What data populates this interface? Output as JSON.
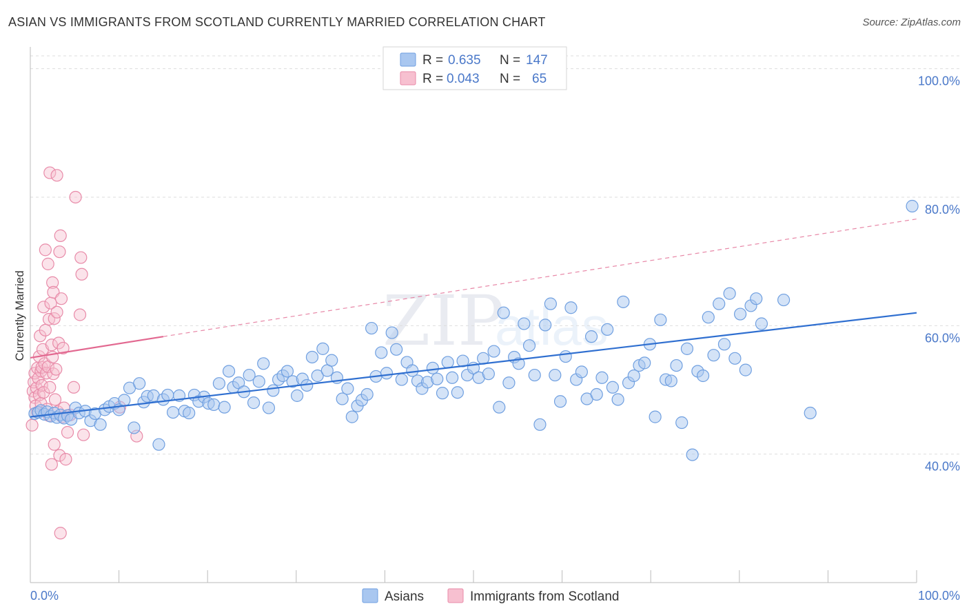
{
  "title": "ASIAN VS IMMIGRANTS FROM SCOTLAND CURRENTLY MARRIED CORRELATION CHART",
  "source": "Source: ZipAtlas.com",
  "watermark": {
    "zip": "ZIP",
    "atlas": "atlas"
  },
  "colors": {
    "asian_fill": "#a9c7f0",
    "asian_stroke": "#6f9fe0",
    "asian_line": "#2f6fd0",
    "scot_fill": "#f7c0d0",
    "scot_stroke": "#e88aa8",
    "scot_line": "#e26890",
    "accent_text": "#4a78c9",
    "grid": "#dddddd"
  },
  "legend": {
    "rows": [
      {
        "r_label": "R = ",
        "r_value": "0.635",
        "n_label": "N = ",
        "n_value": "147"
      },
      {
        "r_label": "R = ",
        "r_value": "0.043",
        "n_label": "N = ",
        "n_value": "65"
      }
    ]
  },
  "chart_data": {
    "type": "scatter",
    "title": "ASIAN VS IMMIGRANTS FROM SCOTLAND CURRENTLY MARRIED CORRELATION CHART",
    "xlabel": "",
    "ylabel": "Currently Married",
    "xlim": [
      0,
      100
    ],
    "ylim": [
      20,
      102
    ],
    "x_tick_labels": [
      "0.0%",
      "100.0%"
    ],
    "y_ticks": [
      40,
      60,
      80,
      100
    ],
    "y_tick_labels": [
      "40.0%",
      "60.0%",
      "80.0%",
      "100.0%"
    ],
    "grid": true,
    "legend_position": "top-center",
    "series": [
      {
        "name": "Asians",
        "r": 0.635,
        "n": 147,
        "trend": {
          "x": [
            0,
            100
          ],
          "y": [
            45.8,
            62.0
          ],
          "style": "solid"
        },
        "points": [
          [
            0.5,
            46.3
          ],
          [
            0.9,
            46.5
          ],
          [
            1.2,
            46.8
          ],
          [
            1.6,
            46.2
          ],
          [
            1.9,
            46.6
          ],
          [
            2.3,
            45.9
          ],
          [
            2.7,
            46.4
          ],
          [
            3.0,
            45.7
          ],
          [
            3.4,
            46.1
          ],
          [
            3.8,
            45.6
          ],
          [
            4.2,
            46.0
          ],
          [
            4.6,
            45.4
          ],
          [
            5.1,
            47.2
          ],
          [
            5.5,
            46.4
          ],
          [
            6.2,
            46.7
          ],
          [
            6.8,
            45.2
          ],
          [
            7.3,
            46.3
          ],
          [
            7.9,
            44.6
          ],
          [
            8.4,
            46.9
          ],
          [
            8.9,
            47.4
          ],
          [
            9.5,
            47.9
          ],
          [
            10.0,
            46.9
          ],
          [
            10.6,
            48.4
          ],
          [
            11.2,
            50.3
          ],
          [
            11.7,
            44.1
          ],
          [
            12.3,
            51.0
          ],
          [
            12.8,
            48.1
          ],
          [
            13.2,
            49.0
          ],
          [
            13.9,
            49.1
          ],
          [
            14.5,
            41.5
          ],
          [
            15.0,
            48.5
          ],
          [
            15.5,
            49.2
          ],
          [
            16.1,
            46.5
          ],
          [
            16.8,
            49.1
          ],
          [
            17.4,
            46.7
          ],
          [
            17.9,
            46.4
          ],
          [
            18.5,
            49.2
          ],
          [
            19.0,
            48.2
          ],
          [
            19.6,
            48.9
          ],
          [
            20.1,
            47.9
          ],
          [
            20.7,
            47.7
          ],
          [
            21.3,
            51.0
          ],
          [
            21.9,
            47.3
          ],
          [
            22.4,
            52.9
          ],
          [
            22.9,
            50.4
          ],
          [
            23.5,
            51.1
          ],
          [
            24.1,
            49.7
          ],
          [
            24.7,
            52.3
          ],
          [
            25.2,
            48.0
          ],
          [
            25.8,
            51.3
          ],
          [
            26.3,
            54.1
          ],
          [
            26.9,
            47.2
          ],
          [
            27.4,
            49.9
          ],
          [
            28.0,
            51.6
          ],
          [
            28.5,
            52.2
          ],
          [
            29.0,
            52.9
          ],
          [
            29.6,
            51.3
          ],
          [
            30.1,
            49.1
          ],
          [
            30.7,
            51.7
          ],
          [
            31.2,
            50.7
          ],
          [
            31.8,
            55.1
          ],
          [
            32.4,
            52.2
          ],
          [
            33.0,
            56.4
          ],
          [
            33.5,
            53.0
          ],
          [
            34.0,
            54.6
          ],
          [
            34.6,
            51.9
          ],
          [
            35.2,
            48.6
          ],
          [
            35.8,
            50.2
          ],
          [
            36.3,
            45.8
          ],
          [
            36.9,
            47.5
          ],
          [
            37.4,
            48.4
          ],
          [
            38.0,
            49.3
          ],
          [
            38.5,
            59.6
          ],
          [
            39.0,
            52.1
          ],
          [
            39.6,
            55.8
          ],
          [
            40.2,
            52.6
          ],
          [
            40.8,
            58.9
          ],
          [
            41.3,
            56.3
          ],
          [
            41.9,
            51.6
          ],
          [
            42.5,
            54.3
          ],
          [
            43.1,
            53.0
          ],
          [
            43.7,
            51.4
          ],
          [
            44.2,
            50.2
          ],
          [
            44.8,
            51.2
          ],
          [
            45.4,
            53.4
          ],
          [
            45.9,
            51.7
          ],
          [
            46.5,
            49.5
          ],
          [
            47.1,
            54.3
          ],
          [
            47.6,
            51.9
          ],
          [
            48.2,
            49.6
          ],
          [
            48.8,
            54.5
          ],
          [
            49.3,
            52.3
          ],
          [
            50.0,
            53.4
          ],
          [
            50.6,
            51.9
          ],
          [
            51.1,
            54.9
          ],
          [
            51.7,
            52.5
          ],
          [
            52.3,
            56.0
          ],
          [
            52.9,
            47.3
          ],
          [
            53.4,
            62.0
          ],
          [
            54.0,
            51.1
          ],
          [
            54.6,
            55.1
          ],
          [
            55.1,
            54.1
          ],
          [
            55.7,
            60.3
          ],
          [
            56.3,
            56.9
          ],
          [
            56.9,
            52.3
          ],
          [
            57.5,
            44.6
          ],
          [
            58.1,
            60.1
          ],
          [
            58.7,
            63.4
          ],
          [
            59.2,
            52.3
          ],
          [
            59.8,
            48.2
          ],
          [
            60.4,
            55.2
          ],
          [
            61.0,
            62.8
          ],
          [
            61.6,
            51.6
          ],
          [
            62.2,
            52.8
          ],
          [
            62.8,
            48.6
          ],
          [
            63.3,
            58.3
          ],
          [
            63.9,
            49.3
          ],
          [
            64.5,
            51.9
          ],
          [
            65.1,
            59.4
          ],
          [
            65.7,
            50.4
          ],
          [
            66.3,
            48.5
          ],
          [
            66.9,
            63.7
          ],
          [
            67.5,
            51.1
          ],
          [
            68.1,
            52.2
          ],
          [
            68.7,
            53.8
          ],
          [
            69.3,
            54.2
          ],
          [
            69.9,
            57.1
          ],
          [
            70.5,
            45.8
          ],
          [
            71.1,
            60.9
          ],
          [
            71.7,
            51.6
          ],
          [
            72.3,
            51.4
          ],
          [
            72.9,
            53.8
          ],
          [
            73.5,
            44.9
          ],
          [
            74.1,
            56.4
          ],
          [
            74.7,
            39.9
          ],
          [
            75.3,
            52.9
          ],
          [
            75.9,
            52.2
          ],
          [
            76.5,
            61.3
          ],
          [
            77.1,
            55.4
          ],
          [
            77.7,
            63.4
          ],
          [
            78.3,
            57.1
          ],
          [
            78.9,
            65.0
          ],
          [
            79.5,
            54.9
          ],
          [
            80.1,
            61.8
          ],
          [
            80.7,
            53.1
          ],
          [
            81.3,
            63.1
          ],
          [
            81.9,
            64.2
          ],
          [
            82.5,
            60.3
          ],
          [
            85.0,
            64.0
          ],
          [
            88.0,
            46.4
          ],
          [
            99.5,
            78.6
          ]
        ]
      },
      {
        "name": "Immigrants from Scotland",
        "r": 0.043,
        "n": 65,
        "trend": {
          "x": [
            0,
            15
          ],
          "y": [
            55.0,
            58.3
          ],
          "style": "solid",
          "extended": {
            "x": [
              15,
              100
            ],
            "y": [
              58.3,
              76.6
            ],
            "style": "dashed"
          }
        },
        "points": [
          [
            0.2,
            44.5
          ],
          [
            0.3,
            49.8
          ],
          [
            0.4,
            51.2
          ],
          [
            0.5,
            48.8
          ],
          [
            0.5,
            52.6
          ],
          [
            0.6,
            47.5
          ],
          [
            0.7,
            50.3
          ],
          [
            0.8,
            53.4
          ],
          [
            0.8,
            46.5
          ],
          [
            0.9,
            51.8
          ],
          [
            1.0,
            55.2
          ],
          [
            1.0,
            49.2
          ],
          [
            1.1,
            58.4
          ],
          [
            1.2,
            52.9
          ],
          [
            1.2,
            47.9
          ],
          [
            1.3,
            50.7
          ],
          [
            1.3,
            53.5
          ],
          [
            1.4,
            56.3
          ],
          [
            1.5,
            62.9
          ],
          [
            1.5,
            49.6
          ],
          [
            1.6,
            54.1
          ],
          [
            1.7,
            59.3
          ],
          [
            1.7,
            71.8
          ],
          [
            1.8,
            52.6
          ],
          [
            1.9,
            47.0
          ],
          [
            2.0,
            69.6
          ],
          [
            2.0,
            53.6
          ],
          [
            2.1,
            61.0
          ],
          [
            2.1,
            46.0
          ],
          [
            2.2,
            83.8
          ],
          [
            2.2,
            50.4
          ],
          [
            2.3,
            63.5
          ],
          [
            2.4,
            57.0
          ],
          [
            2.4,
            38.4
          ],
          [
            2.5,
            66.7
          ],
          [
            2.5,
            55.1
          ],
          [
            2.6,
            65.2
          ],
          [
            2.6,
            52.5
          ],
          [
            2.7,
            41.5
          ],
          [
            2.7,
            61.1
          ],
          [
            2.8,
            48.5
          ],
          [
            2.9,
            53.2
          ],
          [
            3.0,
            62.1
          ],
          [
            3.0,
            83.4
          ],
          [
            3.1,
            46.6
          ],
          [
            3.2,
            57.3
          ],
          [
            3.3,
            71.5
          ],
          [
            3.3,
            39.8
          ],
          [
            3.4,
            27.7
          ],
          [
            3.4,
            74.0
          ],
          [
            3.5,
            64.2
          ],
          [
            3.6,
            45.8
          ],
          [
            3.7,
            56.5
          ],
          [
            3.8,
            47.2
          ],
          [
            4.0,
            39.2
          ],
          [
            4.2,
            43.4
          ],
          [
            4.5,
            46.1
          ],
          [
            4.9,
            50.4
          ],
          [
            5.1,
            80.0
          ],
          [
            5.6,
            61.7
          ],
          [
            5.7,
            70.6
          ],
          [
            5.8,
            68.0
          ],
          [
            6.0,
            43.0
          ],
          [
            10.1,
            47.3
          ],
          [
            12.0,
            42.8
          ]
        ]
      }
    ]
  },
  "bottom_legend": {
    "items": [
      "Asians",
      "Immigrants from Scotland"
    ]
  }
}
